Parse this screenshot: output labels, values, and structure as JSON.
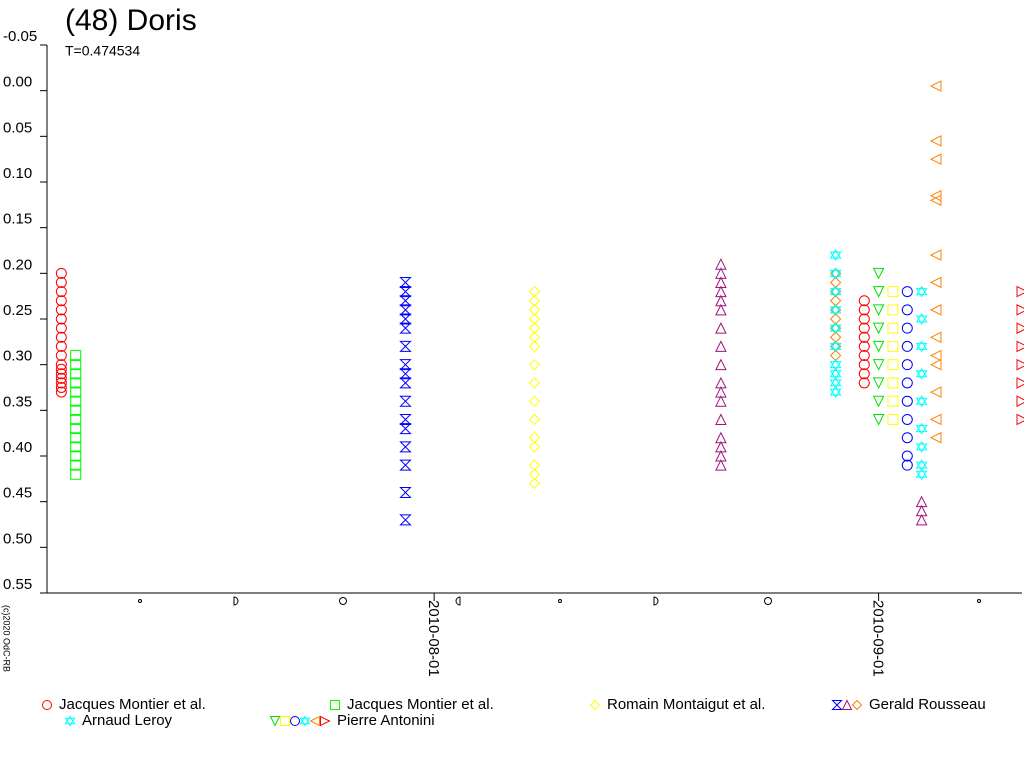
{
  "chart_data": {
    "type": "scatter",
    "title": "(48) Doris",
    "subtitle": "T=0.474534",
    "credit": "(c)2020 OdC-RB",
    "xlim": [
      "2010-07-05",
      "2010-09-11"
    ],
    "xticks": [
      "2010-08-01",
      "2010-09-01"
    ],
    "ylim": [
      0.55,
      -0.05
    ],
    "yticks": [
      -0.05,
      {
        "value": 0,
        "label": "0.00"
      },
      0.05,
      {
        "value": 0.1,
        "label": "0.10"
      },
      0.15,
      {
        "value": 0.2,
        "label": "0.20"
      },
      0.25,
      {
        "value": 0.3,
        "label": "0.30"
      },
      0.35,
      {
        "value": 0.4,
        "label": "0.40"
      },
      0.45,
      {
        "value": 0.5,
        "label": "0.50"
      },
      0.55
    ],
    "series": [
      {
        "name": "Jacques Montier et al.",
        "groups": [
          {
            "color": "#ff0000",
            "marker": "circle",
            "x": "2010-07-06",
            "values": [
              0.2,
              0.21,
              0.22,
              0.23,
              0.24,
              0.25,
              0.26,
              0.27,
              0.28,
              0.29,
              0.3,
              0.305,
              0.31,
              0.315,
              0.32,
              0.325,
              0.33
            ]
          },
          {
            "color": "#ff0000",
            "marker": "circle",
            "x": "2010-08-31",
            "values": [
              0.23,
              0.24,
              0.25,
              0.26,
              0.27,
              0.28,
              0.29,
              0.3,
              0.31,
              0.32
            ]
          }
        ]
      },
      {
        "name": "Jacques Montier et al.",
        "groups": [
          {
            "color": "#00ff00",
            "marker": "square",
            "x": "2010-07-07",
            "values": [
              0.29,
              0.3,
              0.31,
              0.32,
              0.33,
              0.34,
              0.35,
              0.36,
              0.37,
              0.38,
              0.39,
              0.4,
              0.41,
              0.42
            ]
          }
        ]
      },
      {
        "name": "Romain Montaigut et al.",
        "groups": [
          {
            "color": "#ffff00",
            "marker": "diamond",
            "x": "2010-08-08",
            "values": [
              0.22,
              0.23,
              0.24,
              0.25,
              0.26,
              0.27,
              0.28,
              0.3,
              0.32,
              0.34,
              0.36,
              0.38,
              0.39,
              0.41,
              0.42,
              0.43
            ]
          }
        ]
      },
      {
        "name": "Gerald Rousseau",
        "groups": [
          {
            "color": "#0000ff",
            "marker": "bowtie",
            "x": "2010-07-30",
            "values": [
              0.21,
              0.22,
              0.23,
              0.24,
              0.25,
              0.26,
              0.28,
              0.3,
              0.31,
              0.32,
              0.34,
              0.36,
              0.37,
              0.39,
              0.41,
              0.44,
              0.47
            ]
          },
          {
            "color": "#a0137a",
            "marker": "triangle-up",
            "x": "2010-08-21",
            "values": [
              0.19,
              0.2,
              0.21,
              0.22,
              0.23,
              0.24,
              0.26,
              0.28,
              0.3,
              0.32,
              0.33,
              0.34,
              0.36,
              0.38,
              0.39,
              0.4,
              0.41
            ]
          },
          {
            "color": "#a0137a",
            "marker": "triangle-up",
            "x": "2010-09-04",
            "values": [
              0.45,
              0.46,
              0.47
            ]
          },
          {
            "color": "#ff8000",
            "marker": "diamond",
            "x": "2010-08-29",
            "values": [
              0.2,
              0.21,
              0.22,
              0.23,
              0.24,
              0.25,
              0.26,
              0.27,
              0.28,
              0.29
            ]
          }
        ]
      },
      {
        "name": "Arnaud Leroy",
        "groups": [
          {
            "color": "#00ffff",
            "marker": "star",
            "x": "2010-08-29",
            "values": [
              0.18,
              0.2,
              0.22,
              0.24,
              0.26,
              0.28,
              0.3,
              0.31,
              0.32,
              0.33
            ]
          }
        ]
      },
      {
        "name": "Pierre Antonini",
        "groups": [
          {
            "color": "#00e000",
            "marker": "triangle-down",
            "x": "2010-09-01",
            "values": [
              0.2,
              0.22,
              0.24,
              0.26,
              0.28,
              0.3,
              0.32,
              0.34,
              0.36
            ]
          },
          {
            "color": "#ffff00",
            "marker": "square",
            "x": "2010-09-02",
            "values": [
              0.22,
              0.24,
              0.26,
              0.28,
              0.3,
              0.32,
              0.34,
              0.36
            ]
          },
          {
            "color": "#0000ff",
            "marker": "circle",
            "x": "2010-09-03",
            "values": [
              0.22,
              0.24,
              0.26,
              0.28,
              0.3,
              0.32,
              0.34,
              0.36,
              0.38,
              0.4,
              0.41
            ]
          },
          {
            "color": "#00ffff",
            "marker": "star",
            "x": "2010-09-04",
            "values": [
              0.22,
              0.25,
              0.28,
              0.31,
              0.34,
              0.37,
              0.39,
              0.41,
              0.42
            ]
          },
          {
            "color": "#ff8000",
            "marker": "triangle-left",
            "x": "2010-09-05",
            "values": [
              -0.005,
              0.055,
              0.075,
              0.115,
              0.12,
              0.18,
              0.21,
              0.24,
              0.27,
              0.29,
              0.3,
              0.33,
              0.36,
              0.38
            ]
          },
          {
            "color": "#ff0000",
            "marker": "triangle-right",
            "x": "2010-09-11",
            "values": [
              0.22,
              0.24,
              0.26,
              0.28,
              0.3,
              0.32,
              0.34,
              0.36
            ]
          }
        ]
      }
    ]
  }
}
